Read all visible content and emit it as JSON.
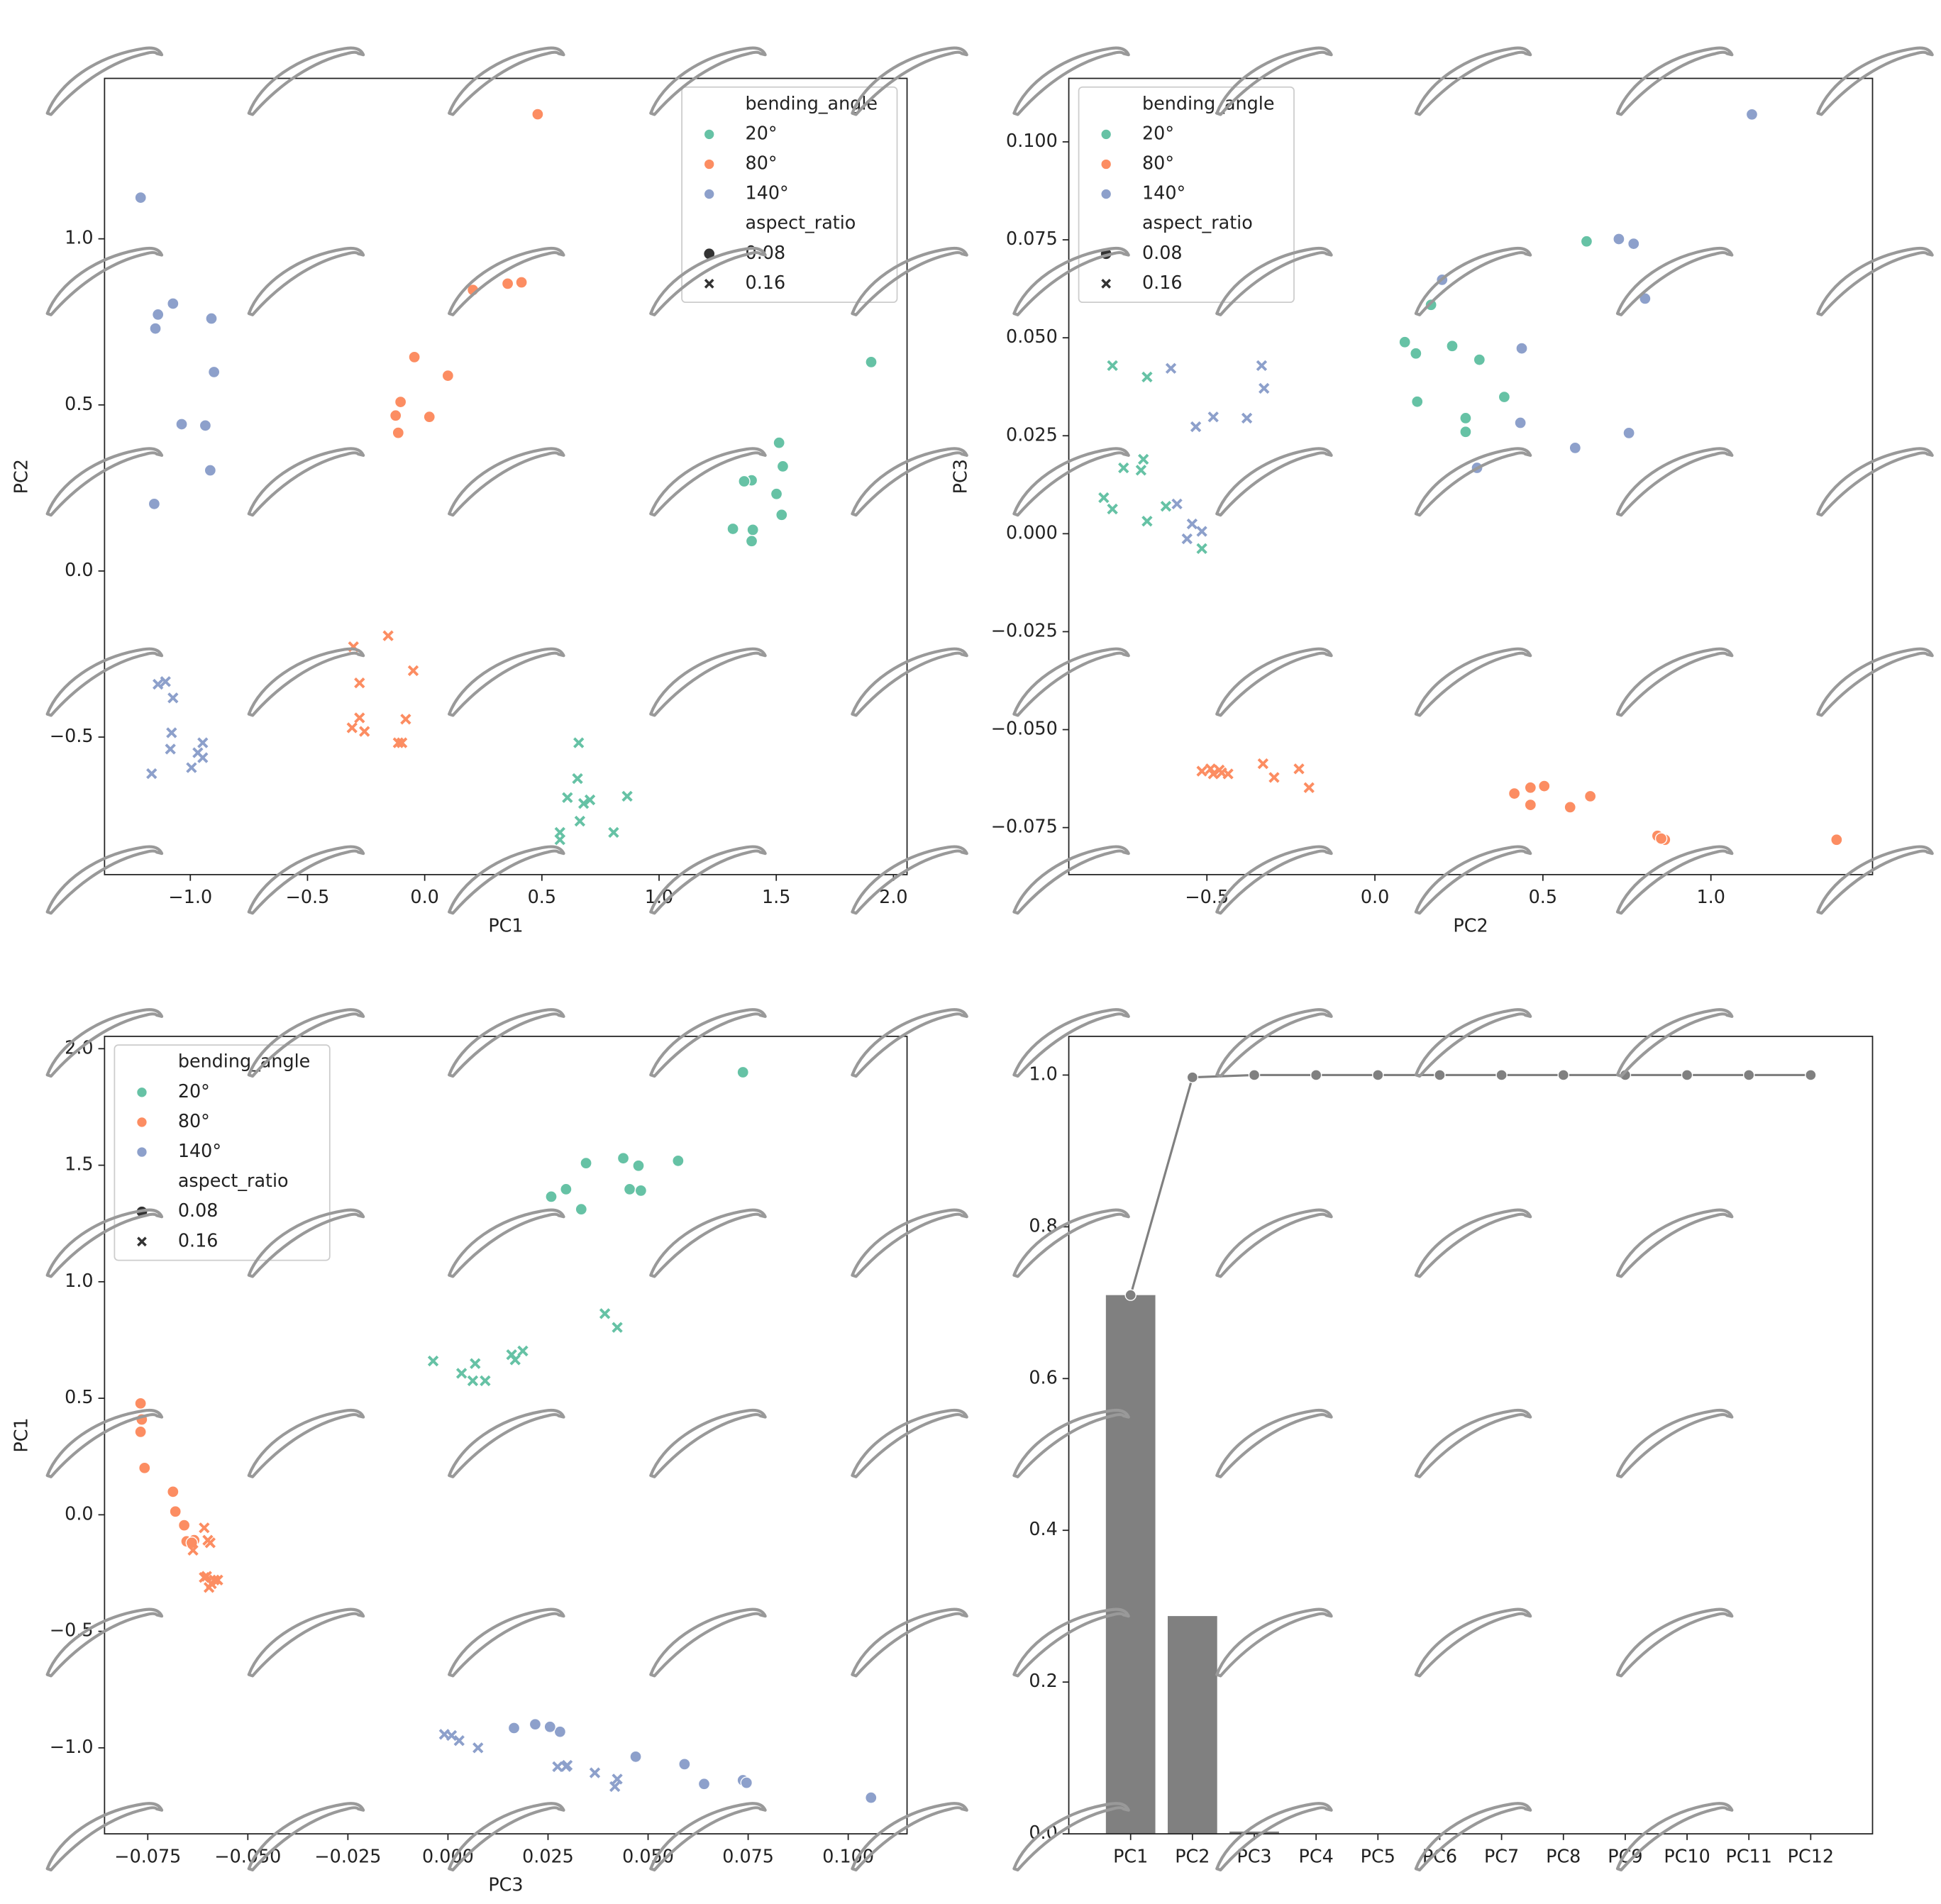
{
  "chart_data": [
    {
      "type": "scatter",
      "xlabel": "PC1",
      "ylabel": "PC2",
      "xlim": [
        -1.366,
        2.058
      ],
      "ylim": [
        -0.914,
        1.483
      ],
      "xticks": [
        {
          "value": -1.0,
          "label": "−1.0"
        },
        {
          "value": -0.5,
          "label": "−0.5"
        },
        {
          "value": 0,
          "label": "0.0"
        },
        0.5,
        {
          "value": 1.0,
          "label": "1.0"
        },
        1.5,
        {
          "value": 2.0,
          "label": "2.0"
        }
      ],
      "yticks": [
        {
          "value": -0.5,
          "label": "−0.5"
        },
        {
          "value": 0,
          "label": "0.0"
        },
        0.5,
        {
          "value": 1.0,
          "label": "1.0"
        }
      ],
      "legend": "upper right",
      "hue_title": "bending_angle",
      "style_title": "aspect_ratio",
      "style_levels": [
        {
          "name": "0.08",
          "marker": "circle"
        },
        {
          "name": "0.16",
          "marker": "x"
        }
      ],
      "series": [
        {
          "name": "20°",
          "color": "#66c2a5",
          "by_style": [
            {
              "x": [
                1.905,
                1.512,
                1.528,
                1.395,
                1.363,
                1.501,
                1.523,
                1.315,
                1.4,
                1.395
              ],
              "y": [
                0.629,
                0.386,
                0.315,
                0.273,
                0.27,
                0.232,
                0.169,
                0.127,
                0.124,
                0.09
              ]
            },
            {
              "x": [
                0.657,
                0.652,
                0.609,
                0.864,
                0.705,
                0.678,
                0.662,
                0.577,
                0.806,
                0.577
              ],
              "y": [
                -0.517,
                -0.625,
                -0.682,
                -0.678,
                -0.689,
                -0.7,
                -0.753,
                -0.787,
                -0.787,
                -0.809
              ]
            }
          ]
        },
        {
          "name": "80°",
          "color": "#fc8d62",
          "by_style": [
            {
              "x": [
                0.482,
                0.413,
                0.354,
                0.206,
                -0.044,
                0.099,
                -0.103,
                -0.124,
                0.02,
                -0.113
              ],
              "y": [
                1.375,
                0.869,
                0.865,
                0.846,
                0.644,
                0.588,
                0.509,
                0.468,
                0.464,
                0.416
              ]
            },
            {
              "x": [
                -0.156,
                -0.304,
                -0.049,
                -0.278,
                -0.278,
                -0.081,
                -0.31,
                -0.257,
                -0.113,
                -0.097
              ],
              "y": [
                -0.195,
                -0.228,
                -0.3,
                -0.337,
                -0.442,
                -0.446,
                -0.472,
                -0.483,
                -0.517,
                -0.517
              ]
            }
          ]
        },
        {
          "name": "140°",
          "color": "#8da0cb",
          "by_style": [
            {
              "x": [
                -1.212,
                -1.074,
                -1.138,
                -0.91,
                -1.149,
                -0.899,
                -1.037,
                -0.936,
                -0.915,
                -1.154
              ],
              "y": [
                1.124,
                0.805,
                0.772,
                0.76,
                0.73,
                0.599,
                0.442,
                0.438,
                0.303,
                0.202
              ]
            },
            {
              "x": [
                -1.106,
                -1.138,
                -1.074,
                -1.08,
                -0.947,
                -1.085,
                -0.968,
                -0.947,
                -0.995,
                -1.165
              ],
              "y": [
                -0.333,
                -0.341,
                -0.382,
                -0.487,
                -0.517,
                -0.536,
                -0.547,
                -0.562,
                -0.592,
                -0.61
              ]
            }
          ]
        }
      ]
    },
    {
      "type": "scatter",
      "xlabel": "PC2",
      "ylabel": "PC3",
      "xlim": [
        -0.911,
        1.481
      ],
      "ylim": [
        -0.087,
        0.1162
      ],
      "xticks": [
        {
          "value": -0.5,
          "label": "−0.5"
        },
        {
          "value": 0,
          "label": "0.0"
        },
        0.5,
        {
          "value": 1.0,
          "label": "1.0"
        }
      ],
      "yticks": [
        {
          "value": -0.075,
          "label": "−0.075"
        },
        {
          "value": -0.05,
          "label": "−0.050"
        },
        {
          "value": -0.025,
          "label": "−0.025"
        },
        {
          "value": 0,
          "label": "0.000"
        },
        0.025,
        {
          "value": 0.05,
          "label": "0.050"
        },
        0.075,
        {
          "value": 0.1,
          "label": "0.100"
        }
      ],
      "legend": "upper left",
      "hue_title": "bending_angle",
      "style_title": "aspect_ratio",
      "style_levels": [
        {
          "name": "0.08",
          "marker": "circle"
        },
        {
          "name": "0.16",
          "marker": "x"
        }
      ],
      "series": [
        {
          "name": "20°",
          "color": "#66c2a5",
          "by_style": [
            {
              "x": [
                0.63,
                0.167,
                0.089,
                0.23,
                0.122,
                0.311,
                0.385,
                0.126,
                0.27,
                0.27
              ],
              "y": [
                0.0746,
                0.0584,
                0.0489,
                0.0479,
                0.046,
                0.0444,
                0.0349,
                0.0337,
                0.0295,
                0.026
              ]
            },
            {
              "x": [
                -0.781,
                -0.678,
                -0.807,
                -0.689,
                -0.748,
                -0.696,
                -0.781,
                -0.622,
                -0.678,
                -0.515
              ],
              "y": [
                0.0429,
                0.04,
                0.0092,
                0.019,
                0.0168,
                0.0162,
                0.0063,
                0.007,
                0.0032,
                -0.0038
              ]
            }
          ]
        },
        {
          "name": "80°",
          "color": "#fc8d62",
          "by_style": [
            {
              "x": [
                1.374,
                0.841,
                0.863,
                0.852,
                0.641,
                0.504,
                0.463,
                0.415,
                0.463,
                0.581
              ],
              "y": [
                -0.0781,
                -0.0771,
                -0.0781,
                -0.0778,
                -0.067,
                -0.0644,
                -0.0648,
                -0.0663,
                -0.0692,
                -0.0698
              ]
            },
            {
              "x": [
                -0.333,
                -0.226,
                -0.515,
                -0.463,
                -0.481,
                -0.437,
                -0.3,
                -0.196,
                -0.456,
                -0.489
              ],
              "y": [
                -0.0587,
                -0.06,
                -0.0606,
                -0.0603,
                -0.0613,
                -0.0613,
                -0.0622,
                -0.0648,
                -0.061,
                -0.06
              ]
            }
          ]
        },
        {
          "name": "140°",
          "color": "#8da0cb",
          "by_style": [
            {
              "x": [
                1.122,
                0.726,
                0.77,
                0.2,
                0.804,
                0.437,
                0.433,
                0.756,
                0.596,
                0.304
              ],
              "y": [
                0.107,
                0.0752,
                0.074,
                0.0648,
                0.06,
                0.0473,
                0.0283,
                0.0257,
                0.0219,
                0.0168
              ]
            },
            {
              "x": [
                -0.607,
                -0.337,
                -0.33,
                -0.481,
                -0.381,
                -0.533,
                -0.589,
                -0.544,
                -0.515,
                -0.559
              ],
              "y": [
                0.0422,
                0.0429,
                0.0371,
                0.0298,
                0.0295,
                0.0273,
                0.0076,
                0.0025,
                0.0006,
                -0.0013
              ]
            }
          ]
        }
      ]
    },
    {
      "type": "scatter",
      "xlabel": "PC3",
      "ylabel": "PC1",
      "xlim": [
        -0.0858,
        0.1147
      ],
      "ylim": [
        -1.369,
        2.053
      ],
      "xticks": [
        {
          "value": -0.075,
          "label": "−0.075"
        },
        {
          "value": -0.05,
          "label": "−0.050"
        },
        {
          "value": -0.025,
          "label": "−0.025"
        },
        {
          "value": 0,
          "label": "0.000"
        },
        0.025,
        {
          "value": 0.05,
          "label": "0.050"
        },
        0.075,
        {
          "value": 0.1,
          "label": "0.100"
        }
      ],
      "yticks": [
        {
          "value": -1.0,
          "label": "−1.0"
        },
        {
          "value": -0.5,
          "label": "−0.5"
        },
        {
          "value": 0,
          "label": "0.0"
        },
        0.5,
        {
          "value": 1.0,
          "label": "1.0"
        },
        1.5,
        {
          "value": 2.0,
          "label": "2.0"
        }
      ],
      "legend": "upper left",
      "hue_title": "bending_angle",
      "style_title": "aspect_ratio",
      "style_levels": [
        {
          "name": "0.08",
          "marker": "circle"
        },
        {
          "name": "0.16",
          "marker": "x"
        }
      ],
      "series": [
        {
          "name": "20°",
          "color": "#66c2a5",
          "by_style": [
            {
              "x": [
                0.0737,
                0.0438,
                0.0345,
                0.0575,
                0.0476,
                0.0295,
                0.0454,
                0.0482,
                0.0258,
                0.0333
              ],
              "y": [
                1.899,
                1.53,
                1.509,
                1.519,
                1.498,
                1.397,
                1.397,
                1.391,
                1.365,
                1.311
              ]
            },
            {
              "x": [
                0.0392,
                0.0423,
                -0.0037,
                0.0187,
                0.0159,
                0.0168,
                0.0068,
                0.0034,
                0.0062,
                0.0093
              ],
              "y": [
                0.863,
                0.804,
                0.66,
                0.703,
                0.687,
                0.665,
                0.649,
                0.607,
                0.575,
                0.575
              ]
            }
          ]
        },
        {
          "name": "80°",
          "color": "#fc8d62",
          "by_style": [
            {
              "x": [
                -0.0768,
                -0.0765,
                -0.0768,
                -0.0758,
                -0.0687,
                -0.0681,
                -0.0659,
                -0.0653,
                -0.0634,
                -0.064
              ],
              "y": [
                0.478,
                0.409,
                0.356,
                0.201,
                0.099,
                0.014,
                -0.045,
                -0.114,
                -0.109,
                -0.12
              ]
            },
            {
              "x": [
                -0.0609,
                -0.06,
                -0.0594,
                -0.0637,
                -0.0603,
                -0.0575,
                -0.0597,
                -0.0584,
                -0.0609,
                -0.0591
              ],
              "y": [
                -0.056,
                -0.109,
                -0.12,
                -0.152,
                -0.264,
                -0.28,
                -0.312,
                -0.28,
                -0.269,
                -0.296
              ]
            }
          ]
        },
        {
          "name": "140°",
          "color": "#8da0cb",
          "by_style": [
            {
              "x": [
                0.1057,
                0.0737,
                0.0746,
                0.064,
                0.0591,
                0.0469,
                0.028,
                0.0255,
                0.0218,
                0.0165
              ],
              "y": [
                -1.214,
                -1.139,
                -1.15,
                -1.155,
                -1.07,
                -1.038,
                -0.931,
                -0.91,
                -0.899,
                -0.915
              ]
            },
            {
              "x": [
                -0.0009,
                0.0009,
                0.0028,
                0.0075,
                0.0274,
                0.0298,
                0.0367,
                0.0423,
                0.0417,
                0.0295
              ],
              "y": [
                -0.942,
                -0.947,
                -0.969,
                -1.0,
                -1.081,
                -1.075,
                -1.107,
                -1.134,
                -1.166,
                -1.08
              ]
            }
          ]
        }
      ]
    },
    {
      "type": "bar",
      "categories": [
        "PC1",
        "PC2",
        "PC3",
        "PC4",
        "PC5",
        "PC6",
        "PC7",
        "PC8",
        "PC9",
        "PC10",
        "PC11",
        "PC12"
      ],
      "ylim": [
        0,
        1.051
      ],
      "yticks": [
        {
          "value": 0,
          "label": "0.0"
        },
        0.2,
        0.4,
        0.6,
        0.8,
        {
          "value": 1.0,
          "label": "1.0"
        }
      ],
      "series": [
        {
          "kind": "bar",
          "color": "#808080",
          "values": [
            0.71,
            0.287,
            0.003,
            0,
            0,
            0,
            0,
            0,
            0,
            0,
            0,
            0
          ]
        },
        {
          "kind": "line",
          "color": "#808080",
          "values": [
            0.71,
            0.997,
            1.0,
            1.0,
            1.0,
            1.0,
            1.0,
            1.0,
            1.0,
            1.0,
            1.0,
            1.0
          ]
        }
      ]
    }
  ]
}
